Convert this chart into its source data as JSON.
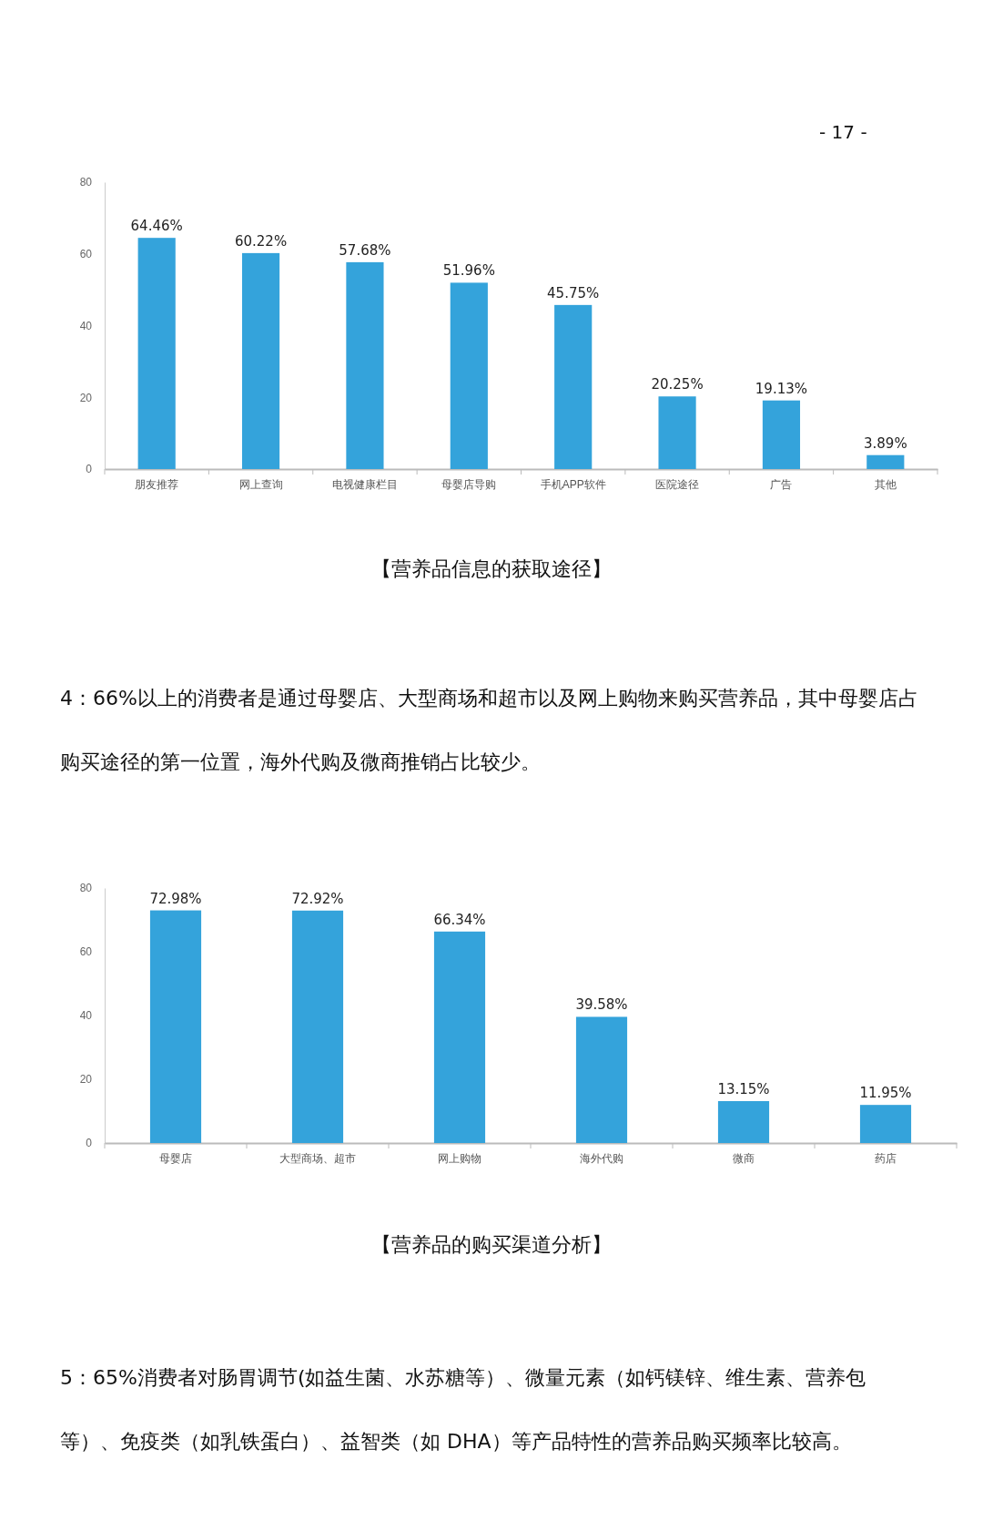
{
  "chart_data": [
    {
      "type": "bar",
      "title": "【营养品信息的获取途径】",
      "categories": [
        "朋友推荐",
        "网上查询",
        "电视健康栏目",
        "母婴店导购",
        "手机APP软件",
        "医院途径",
        "广告",
        "其他"
      ],
      "values": [
        64.46,
        60.22,
        57.68,
        51.96,
        45.75,
        20.25,
        19.13,
        3.89
      ],
      "value_labels": [
        "64.46%",
        "60.22%",
        "57.68%",
        "51.96%",
        "45.75%",
        "20.25%",
        "19.13%",
        "3.89%"
      ],
      "color": "#34a3db",
      "ylim": [
        0,
        80
      ],
      "yticks": [
        0,
        20,
        40,
        60,
        80
      ],
      "annotations": [
        "- 17 -"
      ]
    },
    {
      "type": "bar",
      "title": "【营养品的购买渠道分析】",
      "categories": [
        "母婴店",
        "大型商场、超市",
        "网上购物",
        "海外代购",
        "微商",
        "药店"
      ],
      "values": [
        72.98,
        72.92,
        66.34,
        39.58,
        13.15,
        11.95
      ],
      "value_labels": [
        "72.98%",
        "72.92%",
        "66.34%",
        "39.58%",
        "13.15%",
        "11.95%"
      ],
      "color": "#34a3db",
      "ylim": [
        0,
        80
      ],
      "yticks": [
        0,
        20,
        40,
        60,
        80
      ],
      "annotations": [
        "4：66%以上的消费者是通过母婴店、大型商场和超市以及网上购物来购买营养品，其中母婴店占购买途径的第一位置，海外代购及微商推销占比较少。",
        "5：65%消费者对肠胃调节(如益生菌、水苏糖等）、微量元素（如钙镁锌、维生素、营养包等）、免疫类（如乳铁蛋白）、益智类（如 DHA）等产品特性的营养品购买频率比较高。"
      ]
    }
  ]
}
